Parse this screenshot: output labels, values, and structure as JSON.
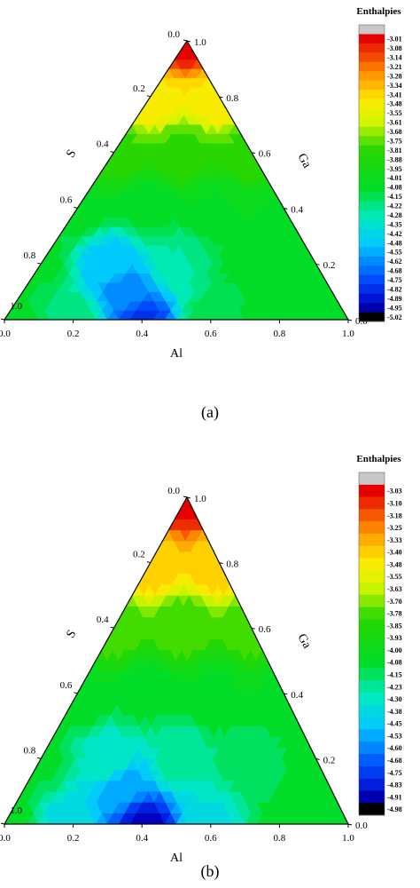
{
  "chart_data": [
    {
      "type": "heatmap",
      "subtype": "ternary-contour",
      "caption": "(a)",
      "axes": {
        "bottom": "Al",
        "left": "S",
        "right": "Ga"
      },
      "axis_range": [
        0.0,
        1.0
      ],
      "ticks": [
        "0.0",
        "0.2",
        "0.4",
        "0.6",
        "0.8",
        "1.0"
      ],
      "legend_title": "Enthalpies",
      "legend_placement": "right",
      "legend_levels": [
        "-3.01",
        "-3.08",
        "-3.14",
        "-3.21",
        "-3.28",
        "-3.34",
        "-3.41",
        "-3.48",
        "-3.55",
        "-3.61",
        "-3.68",
        "-3.75",
        "-3.81",
        "-3.88",
        "-3.95",
        "-4.01",
        "-4.08",
        "-4.15",
        "-4.22",
        "-4.28",
        "-4.35",
        "-4.42",
        "-4.48",
        "-4.55",
        "-4.62",
        "-4.68",
        "-4.75",
        "-4.82",
        "-4.89",
        "-4.95",
        "-5.02"
      ],
      "vmax": -3.01,
      "vmin": -5.02,
      "field_points": [
        {
          "al": 0.0,
          "s": 0.0,
          "ga": 1.0,
          "value": -3.02
        },
        {
          "al": 0.0,
          "s": 0.2,
          "ga": 0.8,
          "value": -3.45
        },
        {
          "al": 0.0,
          "s": 0.4,
          "ga": 0.6,
          "value": -3.8
        },
        {
          "al": 0.0,
          "s": 0.6,
          "ga": 0.4,
          "value": -4.05
        },
        {
          "al": 0.0,
          "s": 0.8,
          "ga": 0.2,
          "value": -4.1
        },
        {
          "al": 0.0,
          "s": 1.0,
          "ga": 0.0,
          "value": -4.08
        },
        {
          "al": 0.2,
          "s": 0.0,
          "ga": 0.8,
          "value": -3.45
        },
        {
          "al": 0.2,
          "s": 0.2,
          "ga": 0.6,
          "value": -3.8
        },
        {
          "al": 0.2,
          "s": 0.4,
          "ga": 0.4,
          "value": -4.1
        },
        {
          "al": 0.2,
          "s": 0.6,
          "ga": 0.2,
          "value": -4.5
        },
        {
          "al": 0.2,
          "s": 0.8,
          "ga": 0.0,
          "value": -4.2
        },
        {
          "al": 0.3,
          "s": 0.6,
          "ga": 0.1,
          "value": -4.62
        },
        {
          "al": 0.4,
          "s": 0.0,
          "ga": 0.6,
          "value": -3.8
        },
        {
          "al": 0.4,
          "s": 0.2,
          "ga": 0.4,
          "value": -4.05
        },
        {
          "al": 0.4,
          "s": 0.4,
          "ga": 0.2,
          "value": -4.25
        },
        {
          "al": 0.4,
          "s": 0.6,
          "ga": 0.0,
          "value": -4.8
        },
        {
          "al": 0.6,
          "s": 0.0,
          "ga": 0.4,
          "value": -4.05
        },
        {
          "al": 0.6,
          "s": 0.2,
          "ga": 0.2,
          "value": -4.1
        },
        {
          "al": 0.6,
          "s": 0.4,
          "ga": 0.0,
          "value": -4.15
        },
        {
          "al": 0.8,
          "s": 0.0,
          "ga": 0.2,
          "value": -4.1
        },
        {
          "al": 0.8,
          "s": 0.2,
          "ga": 0.0,
          "value": -4.05
        },
        {
          "al": 1.0,
          "s": 0.0,
          "ga": 0.0,
          "value": -4.05
        }
      ]
    },
    {
      "type": "heatmap",
      "subtype": "ternary-contour",
      "caption": "(b)",
      "axes": {
        "bottom": "Al",
        "left": "S",
        "right": "Ga"
      },
      "axis_range": [
        0.0,
        1.0
      ],
      "ticks": [
        "0.0",
        "0.2",
        "0.4",
        "0.6",
        "0.8",
        "1.0"
      ],
      "legend_title": "Enthalpies",
      "legend_placement": "right",
      "legend_levels": [
        "-3.03",
        "-3.10",
        "-3.18",
        "-3.25",
        "-3.33",
        "-3.40",
        "-3.48",
        "-3.55",
        "-3.63",
        "-3.70",
        "-3.78",
        "-3.85",
        "-3.93",
        "-4.00",
        "-4.08",
        "-4.15",
        "-4.23",
        "-4.30",
        "-4.38",
        "-4.45",
        "-4.53",
        "-4.60",
        "-4.68",
        "-4.75",
        "-4.83",
        "-4.91",
        "-4.98"
      ],
      "vmax": -3.03,
      "vmin": -4.98,
      "field_points": [
        {
          "al": 0.0,
          "s": 0.0,
          "ga": 1.0,
          "value": -3.03
        },
        {
          "al": 0.0,
          "s": 0.2,
          "ga": 0.8,
          "value": -3.4
        },
        {
          "al": 0.0,
          "s": 0.4,
          "ga": 0.6,
          "value": -3.78
        },
        {
          "al": 0.0,
          "s": 0.6,
          "ga": 0.4,
          "value": -4.05
        },
        {
          "al": 0.0,
          "s": 0.8,
          "ga": 0.2,
          "value": -4.1
        },
        {
          "al": 0.0,
          "s": 1.0,
          "ga": 0.0,
          "value": -4.05
        },
        {
          "al": 0.2,
          "s": 0.0,
          "ga": 0.8,
          "value": -3.4
        },
        {
          "al": 0.2,
          "s": 0.2,
          "ga": 0.6,
          "value": -3.78
        },
        {
          "al": 0.2,
          "s": 0.4,
          "ga": 0.4,
          "value": -4.08
        },
        {
          "al": 0.2,
          "s": 0.6,
          "ga": 0.2,
          "value": -4.3
        },
        {
          "al": 0.2,
          "s": 0.8,
          "ga": 0.0,
          "value": -4.4
        },
        {
          "al": 0.3,
          "s": 0.6,
          "ga": 0.1,
          "value": -4.55
        },
        {
          "al": 0.4,
          "s": 0.0,
          "ga": 0.6,
          "value": -3.78
        },
        {
          "al": 0.4,
          "s": 0.2,
          "ga": 0.4,
          "value": -4.05
        },
        {
          "al": 0.4,
          "s": 0.4,
          "ga": 0.2,
          "value": -4.25
        },
        {
          "al": 0.4,
          "s": 0.6,
          "ga": 0.0,
          "value": -4.9
        },
        {
          "al": 0.6,
          "s": 0.0,
          "ga": 0.4,
          "value": -4.05
        },
        {
          "al": 0.6,
          "s": 0.2,
          "ga": 0.2,
          "value": -4.15
        },
        {
          "al": 0.6,
          "s": 0.4,
          "ga": 0.0,
          "value": -4.35
        },
        {
          "al": 0.8,
          "s": 0.0,
          "ga": 0.2,
          "value": -4.1
        },
        {
          "al": 0.8,
          "s": 0.2,
          "ga": 0.0,
          "value": -4.1
        },
        {
          "al": 1.0,
          "s": 0.0,
          "ga": 0.0,
          "value": -4.05
        }
      ]
    }
  ]
}
